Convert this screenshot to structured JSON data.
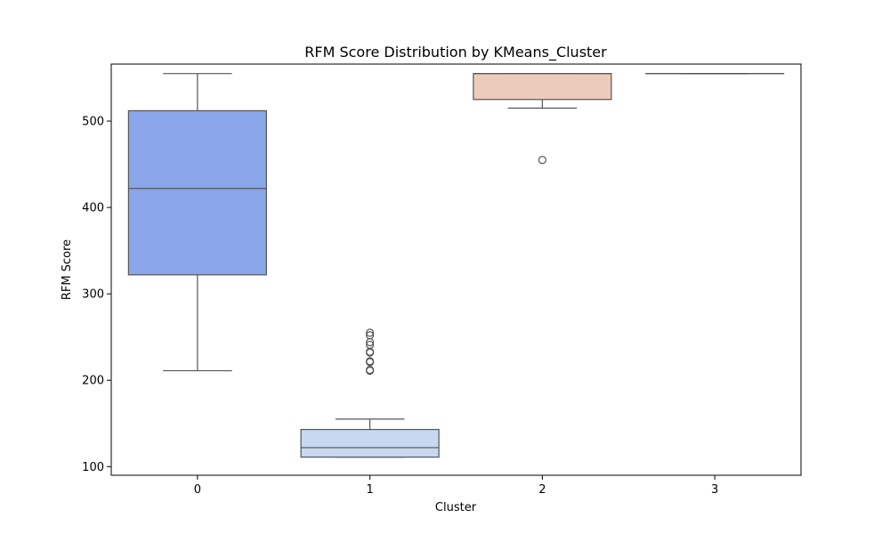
{
  "chart_data": {
    "type": "box",
    "title": "RFM Score Distribution by KMeans_Cluster",
    "xlabel": "Cluster",
    "ylabel": "RFM Score",
    "categories": [
      "0",
      "1",
      "2",
      "3"
    ],
    "ylim": [
      90,
      566
    ],
    "yticks": [
      100,
      200,
      300,
      400,
      500
    ],
    "grid": false,
    "boxes": [
      {
        "category": "0",
        "whislo": 211,
        "q1": 322,
        "median": 422,
        "q3": 512,
        "whishi": 555,
        "outliers": [],
        "color": "#8aa6ea"
      },
      {
        "category": "1",
        "whislo": 111,
        "q1": 111,
        "median": 122,
        "q3": 143,
        "whishi": 155,
        "outliers": [
          211,
          212,
          221,
          222,
          232,
          233,
          241,
          244,
          252,
          255
        ],
        "color": "#c9d8f1"
      },
      {
        "category": "2",
        "whislo": 515,
        "q1": 525,
        "median": 555,
        "q3": 555,
        "whishi": 555,
        "outliers": [
          455
        ],
        "color": "#eccbbd"
      },
      {
        "category": "3",
        "whislo": 555,
        "q1": 555,
        "median": 555,
        "q3": 555,
        "whishi": 555,
        "outliers": [],
        "color": "#e8a58a"
      }
    ]
  }
}
